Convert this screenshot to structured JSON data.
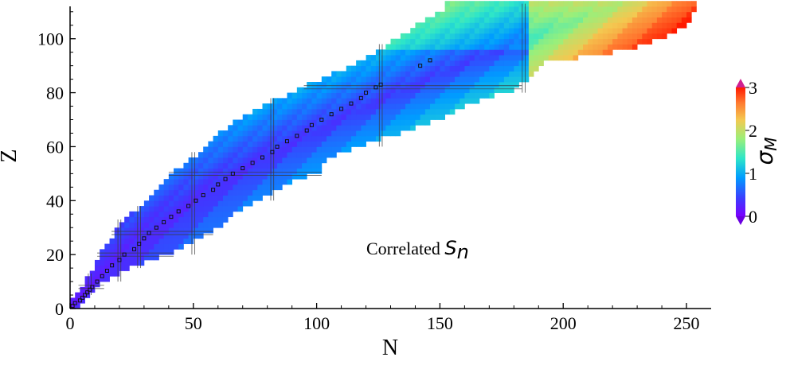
{
  "chart_data": {
    "type": "heatmap",
    "xlabel": "N",
    "ylabel": "Z",
    "xlim": [
      0,
      260
    ],
    "ylim": [
      0,
      112
    ],
    "xticks": [
      0,
      50,
      100,
      150,
      200,
      250
    ],
    "yticks": [
      0,
      20,
      40,
      60,
      80,
      100
    ],
    "annotation": {
      "text": "Correlated ",
      "symbol": "S",
      "subscript": "n"
    },
    "colorbar": {
      "label_symbol": "σ",
      "label_subscript": "M",
      "min": 0,
      "max": 3,
      "ticks": [
        0,
        1,
        2,
        3
      ],
      "colormap": "rainbow",
      "colors": [
        "#7a00ff",
        "#3c3cff",
        "#009cff",
        "#2ee6c8",
        "#9aef7a",
        "#f4c850",
        "#ff7a30",
        "#ff1a00"
      ]
    },
    "magic_numbers": {
      "N": [
        8,
        20,
        28,
        50,
        82,
        126,
        184
      ],
      "Z": [
        8,
        20,
        28,
        50,
        82
      ]
    },
    "region_rows": [
      {
        "z": 1,
        "n_min": 0,
        "n_max": 3
      },
      {
        "z": 5,
        "n_min": 3,
        "n_max": 7
      },
      {
        "z": 10,
        "n_min": 7,
        "n_max": 15
      },
      {
        "z": 15,
        "n_min": 10,
        "n_max": 26
      },
      {
        "z": 20,
        "n_min": 13,
        "n_max": 40
      },
      {
        "z": 25,
        "n_min": 17,
        "n_max": 50
      },
      {
        "z": 30,
        "n_min": 20,
        "n_max": 60
      },
      {
        "z": 35,
        "n_min": 26,
        "n_max": 66
      },
      {
        "z": 40,
        "n_min": 32,
        "n_max": 76
      },
      {
        "z": 45,
        "n_min": 36,
        "n_max": 86
      },
      {
        "z": 50,
        "n_min": 42,
        "n_max": 100
      },
      {
        "z": 55,
        "n_min": 50,
        "n_max": 104
      },
      {
        "z": 60,
        "n_min": 56,
        "n_max": 118
      },
      {
        "z": 65,
        "n_min": 62,
        "n_max": 136
      },
      {
        "z": 70,
        "n_min": 70,
        "n_max": 150
      },
      {
        "z": 75,
        "n_min": 80,
        "n_max": 162
      },
      {
        "z": 80,
        "n_min": 92,
        "n_max": 178
      },
      {
        "z": 85,
        "n_min": 104,
        "n_max": 186
      },
      {
        "z": 90,
        "n_min": 116,
        "n_max": 190
      },
      {
        "z": 95,
        "n_min": 126,
        "n_max": 226
      },
      {
        "z": 100,
        "n_min": 134,
        "n_max": 240
      },
      {
        "z": 105,
        "n_min": 142,
        "n_max": 250
      },
      {
        "z": 110,
        "n_min": 152,
        "n_max": 252
      }
    ],
    "stable_nuclei": [
      {
        "n": 1,
        "z": 1
      },
      {
        "n": 2,
        "z": 2
      },
      {
        "n": 4,
        "z": 3
      },
      {
        "n": 5,
        "z": 4
      },
      {
        "n": 6,
        "z": 5
      },
      {
        "n": 7,
        "z": 6
      },
      {
        "n": 8,
        "z": 7
      },
      {
        "n": 9,
        "z": 8
      },
      {
        "n": 11,
        "z": 10
      },
      {
        "n": 13,
        "z": 12
      },
      {
        "n": 15,
        "z": 14
      },
      {
        "n": 17,
        "z": 16
      },
      {
        "n": 20,
        "z": 18
      },
      {
        "n": 22,
        "z": 20
      },
      {
        "n": 26,
        "z": 22
      },
      {
        "n": 28,
        "z": 24
      },
      {
        "n": 30,
        "z": 26
      },
      {
        "n": 32,
        "z": 28
      },
      {
        "n": 35,
        "z": 30
      },
      {
        "n": 38,
        "z": 32
      },
      {
        "n": 41,
        "z": 34
      },
      {
        "n": 44,
        "z": 36
      },
      {
        "n": 48,
        "z": 38
      },
      {
        "n": 51,
        "z": 40
      },
      {
        "n": 54,
        "z": 42
      },
      {
        "n": 58,
        "z": 44
      },
      {
        "n": 60,
        "z": 46
      },
      {
        "n": 63,
        "z": 48
      },
      {
        "n": 66,
        "z": 50
      },
      {
        "n": 70,
        "z": 52
      },
      {
        "n": 74,
        "z": 54
      },
      {
        "n": 78,
        "z": 56
      },
      {
        "n": 82,
        "z": 58
      },
      {
        "n": 84,
        "z": 60
      },
      {
        "n": 88,
        "z": 62
      },
      {
        "n": 92,
        "z": 64
      },
      {
        "n": 96,
        "z": 66
      },
      {
        "n": 98,
        "z": 68
      },
      {
        "n": 102,
        "z": 70
      },
      {
        "n": 106,
        "z": 72
      },
      {
        "n": 110,
        "z": 74
      },
      {
        "n": 114,
        "z": 76
      },
      {
        "n": 118,
        "z": 78
      },
      {
        "n": 120,
        "z": 80
      },
      {
        "n": 124,
        "z": 82
      },
      {
        "n": 126,
        "z": 83
      },
      {
        "n": 142,
        "z": 90
      },
      {
        "n": 146,
        "z": 92
      }
    ]
  }
}
